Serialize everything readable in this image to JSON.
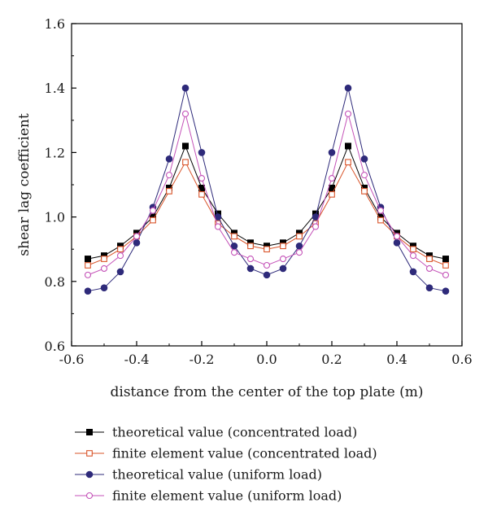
{
  "chart_data": {
    "type": "line",
    "title": "",
    "xlabel": "distance from the center of the top plate (m)",
    "ylabel": "shear lag coefficient",
    "xlim": [
      -0.6,
      0.6
    ],
    "ylim": [
      0.6,
      1.6
    ],
    "x_ticks": [
      "-0.6",
      "-0.4",
      "-0.2",
      "0.0",
      "0.2",
      "0.4",
      "0.6"
    ],
    "y_ticks": [
      "0.6",
      "0.8",
      "1.0",
      "1.2",
      "1.4",
      "1.6"
    ],
    "grid": false,
    "legend_position": "bottom",
    "x": [
      -0.55,
      -0.5,
      -0.45,
      -0.4,
      -0.35,
      -0.3,
      -0.25,
      -0.2,
      -0.15,
      -0.1,
      -0.05,
      0.0,
      0.05,
      0.1,
      0.15,
      0.2,
      0.25,
      0.3,
      0.35,
      0.4,
      0.45,
      0.5,
      0.55
    ],
    "series": [
      {
        "name": "theoretical value (concentrated load)",
        "color": "#000000",
        "marker": "filled-square",
        "values": [
          0.87,
          0.88,
          0.91,
          0.95,
          1.0,
          1.09,
          1.22,
          1.09,
          1.01,
          0.95,
          0.92,
          0.91,
          0.92,
          0.95,
          1.01,
          1.09,
          1.22,
          1.09,
          1.0,
          0.95,
          0.91,
          0.88,
          0.87
        ]
      },
      {
        "name": "finite element value (concentrated load)",
        "color": "#d9542a",
        "marker": "open-square",
        "values": [
          0.85,
          0.87,
          0.9,
          0.94,
          0.99,
          1.08,
          1.17,
          1.07,
          0.98,
          0.94,
          0.91,
          0.9,
          0.91,
          0.94,
          0.98,
          1.07,
          1.17,
          1.08,
          0.99,
          0.94,
          0.9,
          0.87,
          0.85
        ]
      },
      {
        "name": "theoretical value (uniform load)",
        "color": "#2e2a7a",
        "marker": "filled-circle",
        "values": [
          0.77,
          0.78,
          0.83,
          0.92,
          1.03,
          1.18,
          1.4,
          1.2,
          1.0,
          0.91,
          0.84,
          0.82,
          0.84,
          0.91,
          1.0,
          1.2,
          1.4,
          1.18,
          1.03,
          0.92,
          0.83,
          0.78,
          0.77
        ]
      },
      {
        "name": "finite element value (uniform load)",
        "color": "#c452b8",
        "marker": "open-circle",
        "values": [
          0.82,
          0.84,
          0.88,
          0.94,
          1.02,
          1.13,
          1.32,
          1.12,
          0.97,
          0.89,
          0.87,
          0.85,
          0.87,
          0.89,
          0.97,
          1.12,
          1.32,
          1.13,
          1.02,
          0.94,
          0.88,
          0.84,
          0.82
        ]
      }
    ]
  }
}
